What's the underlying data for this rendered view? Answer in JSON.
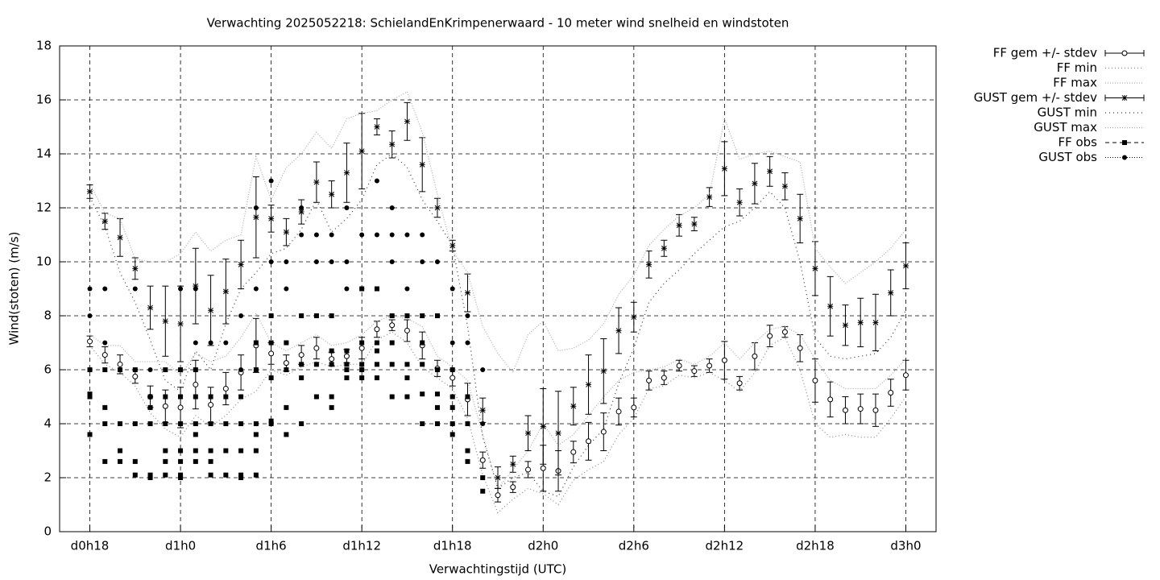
{
  "chart_data": {
    "type": "errorbar",
    "title": "Verwachting 2025052218: SchielandEnKrimpenerwaard - 10 meter wind snelheid en windstoten",
    "x_label": "Verwachtingstijd (UTC)",
    "y_label": "Wind(stoten) (m/s)",
    "xlim": [
      -2,
      56
    ],
    "xticks": [
      {
        "value": 0,
        "label": "d0h18"
      },
      {
        "value": 6,
        "label": "d1h0"
      },
      {
        "value": 12,
        "label": "d1h6"
      },
      {
        "value": 18,
        "label": "d1h12"
      },
      {
        "value": 24,
        "label": "d1h18"
      },
      {
        "value": 30,
        "label": "d2h0"
      },
      {
        "value": 36,
        "label": "d2h6"
      },
      {
        "value": 42,
        "label": "d2h12"
      },
      {
        "value": 48,
        "label": "d2h18"
      },
      {
        "value": 54,
        "label": "d3h0"
      }
    ],
    "ylim": [
      0,
      18
    ],
    "yticks": [
      0,
      2,
      4,
      6,
      8,
      10,
      12,
      14,
      16,
      18
    ],
    "grid": true,
    "legend": "outside-top-right",
    "x": [
      0,
      1,
      2,
      3,
      4,
      5,
      6,
      7,
      8,
      9,
      10,
      11,
      12,
      13,
      14,
      15,
      16,
      17,
      18,
      19,
      20,
      21,
      22,
      23,
      24,
      25,
      26,
      27,
      28,
      29,
      30,
      31,
      32,
      33,
      34,
      35,
      36,
      37,
      38,
      39,
      40,
      41,
      42,
      43,
      44,
      45,
      46,
      47,
      48,
      49,
      50,
      51,
      52,
      53,
      54
    ],
    "series": [
      {
        "name": "FF gem +/- stdev",
        "style": "errorbar",
        "marker": "open-circle",
        "color": "#000000",
        "values": [
          7.05,
          6.55,
          6.2,
          5.75,
          5.0,
          4.65,
          4.6,
          5.45,
          4.7,
          5.3,
          5.9,
          6.9,
          6.6,
          6.25,
          6.55,
          6.8,
          6.4,
          6.5,
          6.8,
          7.5,
          7.65,
          7.45,
          6.9,
          6.05,
          5.7,
          4.9,
          2.65,
          1.35,
          1.65,
          2.3,
          2.35,
          2.25,
          2.95,
          3.35,
          3.7,
          4.45,
          4.6,
          5.6,
          5.7,
          6.15,
          5.95,
          6.15,
          6.35,
          5.5,
          6.5,
          7.25,
          7.4,
          6.8,
          5.6,
          4.9,
          4.5,
          4.55,
          4.5,
          5.15,
          5.8
        ],
        "errors": [
          0.2,
          0.3,
          0.35,
          0.25,
          0.4,
          0.6,
          0.75,
          0.9,
          0.65,
          0.6,
          0.65,
          1.0,
          0.4,
          0.3,
          0.35,
          0.4,
          0.25,
          0.25,
          0.4,
          0.3,
          0.2,
          0.4,
          0.5,
          0.3,
          0.3,
          0.6,
          0.3,
          0.25,
          0.2,
          0.3,
          0.85,
          0.75,
          0.4,
          0.7,
          0.7,
          0.5,
          0.35,
          0.35,
          0.25,
          0.2,
          0.2,
          0.25,
          0.7,
          0.25,
          0.5,
          0.4,
          0.2,
          0.5,
          0.8,
          0.65,
          0.5,
          0.55,
          0.6,
          0.5,
          0.55
        ]
      },
      {
        "name": "FF min",
        "style": "line",
        "dash": "1 3",
        "color": "#888888",
        "values": [
          6.9,
          6.2,
          5.9,
          5.4,
          4.4,
          3.8,
          3.5,
          4.3,
          3.9,
          4.3,
          4.9,
          5.2,
          6.0,
          5.8,
          6.1,
          6.3,
          6.1,
          6.2,
          6.2,
          7.1,
          7.4,
          7.0,
          6.1,
          5.7,
          5.3,
          4.2,
          2.1,
          0.7,
          1.2,
          1.6,
          1.4,
          1.0,
          1.9,
          2.3,
          2.6,
          3.6,
          4.2,
          5.3,
          5.4,
          5.8,
          5.7,
          5.9,
          5.6,
          5.2,
          5.9,
          6.9,
          7.2,
          6.0,
          4.0,
          3.5,
          3.6,
          3.5,
          3.5,
          4.2,
          5.0
        ]
      },
      {
        "name": "FF max",
        "style": "line",
        "dash": "1 2",
        "color": "#aaaaaa",
        "values": [
          7.3,
          6.9,
          6.9,
          6.3,
          6.3,
          6.3,
          5.8,
          6.6,
          6.3,
          6.5,
          7.2,
          8.1,
          7.0,
          6.7,
          7.0,
          7.3,
          6.9,
          7.0,
          7.3,
          7.8,
          8.0,
          7.9,
          7.6,
          6.5,
          6.1,
          5.6,
          3.6,
          1.6,
          2.3,
          3.0,
          4.0,
          3.2,
          3.6,
          4.3,
          5.0,
          5.6,
          5.9,
          6.0,
          6.1,
          6.4,
          6.2,
          6.5,
          7.0,
          6.4,
          7.0,
          7.5,
          7.6,
          7.3,
          6.4,
          5.6,
          5.3,
          5.3,
          5.3,
          5.8,
          6.4
        ]
      },
      {
        "name": "GUST gem +/- stdev",
        "style": "errorbar",
        "marker": "star",
        "color": "#000000",
        "values": [
          12.6,
          11.5,
          10.9,
          9.75,
          8.3,
          7.8,
          7.7,
          9.1,
          8.2,
          8.9,
          9.9,
          11.65,
          11.6,
          11.1,
          11.85,
          12.95,
          12.5,
          13.3,
          14.1,
          15.0,
          14.35,
          15.2,
          13.6,
          12.0,
          10.6,
          8.85,
          4.5,
          2.0,
          2.5,
          3.65,
          3.9,
          3.65,
          4.65,
          5.45,
          5.95,
          7.45,
          7.95,
          9.9,
          10.5,
          11.35,
          11.4,
          12.4,
          13.45,
          12.2,
          12.9,
          13.35,
          12.8,
          11.6,
          9.75,
          8.35,
          7.65,
          7.75,
          7.75,
          8.85,
          9.85
        ],
        "errors": [
          0.25,
          0.3,
          0.7,
          0.4,
          0.8,
          1.3,
          1.4,
          1.4,
          1.3,
          1.2,
          0.9,
          1.5,
          0.5,
          0.5,
          0.45,
          0.75,
          0.5,
          1.1,
          1.4,
          0.3,
          0.5,
          0.7,
          1.0,
          0.35,
          0.2,
          0.7,
          0.45,
          0.4,
          0.3,
          0.65,
          1.4,
          1.55,
          0.7,
          1.1,
          1.2,
          0.85,
          0.55,
          0.5,
          0.3,
          0.4,
          0.25,
          0.35,
          1.0,
          0.5,
          0.75,
          0.55,
          0.5,
          0.9,
          1.0,
          1.1,
          0.75,
          0.9,
          1.05,
          0.85,
          0.85
        ]
      },
      {
        "name": "GUST min",
        "style": "line",
        "dash": "1 4",
        "color": "#333333",
        "values": [
          12.4,
          11.3,
          9.6,
          8.5,
          7.1,
          5.6,
          5.2,
          6.7,
          6.0,
          7.7,
          9.0,
          9.6,
          10.3,
          10.5,
          11.2,
          12.3,
          11.1,
          11.6,
          12.3,
          13.6,
          14.0,
          13.5,
          12.3,
          11.5,
          10.6,
          7.6,
          3.5,
          1.6,
          2.0,
          2.2,
          1.5,
          1.3,
          2.4,
          3.2,
          3.8,
          5.5,
          6.8,
          8.5,
          9.2,
          9.7,
          10.3,
          10.8,
          11.3,
          11.5,
          12.0,
          12.6,
          12.0,
          10.0,
          7.2,
          6.5,
          6.4,
          6.5,
          6.6,
          7.2,
          8.2
        ]
      },
      {
        "name": "GUST max",
        "style": "line",
        "dash": "1 2",
        "color": "#aaaaaa",
        "values": [
          12.9,
          11.8,
          11.6,
          10.1,
          10.0,
          10.0,
          10.3,
          11.1,
          10.4,
          10.8,
          11.0,
          13.9,
          12.3,
          13.5,
          14.0,
          14.8,
          14.2,
          15.3,
          15.5,
          15.6,
          16.0,
          16.3,
          14.8,
          12.5,
          10.4,
          9.6,
          7.6,
          6.6,
          5.9,
          7.3,
          7.8,
          6.7,
          6.8,
          7.1,
          7.7,
          8.8,
          9.5,
          10.6,
          11.2,
          11.7,
          12.0,
          12.5,
          15.3,
          13.8,
          14.0,
          14.1,
          13.9,
          13.7,
          10.5,
          9.8,
          9.2,
          9.6,
          10.0,
          10.5,
          11.2
        ]
      },
      {
        "name": "FF obs",
        "style": "points",
        "marker": "square",
        "dash": "5 4",
        "color": "#000000",
        "x": [
          0,
          0,
          0,
          0,
          1,
          1,
          1,
          1,
          2,
          2,
          2,
          2,
          3,
          3,
          3,
          3,
          4,
          4,
          4,
          4,
          4,
          5,
          5,
          5,
          5,
          5,
          5,
          6,
          6,
          6,
          6,
          6,
          6,
          6,
          7,
          7,
          7,
          7,
          7,
          7,
          8,
          8,
          8,
          8,
          8,
          9,
          9,
          9,
          9,
          10,
          10,
          10,
          10,
          10,
          11,
          11,
          11,
          11,
          11,
          11,
          12,
          12,
          12,
          12,
          12,
          13,
          13,
          13,
          13,
          14,
          14,
          14,
          14,
          15,
          15,
          15,
          16,
          16,
          16,
          16,
          16,
          17,
          17,
          17,
          17,
          18,
          18,
          18,
          18,
          18,
          19,
          19,
          19,
          19,
          19,
          20,
          20,
          20,
          20,
          21,
          21,
          21,
          21,
          22,
          22,
          22,
          22,
          22,
          23,
          23,
          23,
          23,
          23,
          24,
          24,
          24,
          24,
          24,
          25,
          25,
          25,
          25,
          26,
          26
        ],
        "values": [
          6,
          5.1,
          5.0,
          3.6,
          6,
          4.6,
          4.0,
          2.6,
          6,
          4,
          3,
          2.6,
          6,
          4,
          2.6,
          2.1,
          5,
          4.6,
          4,
          2.1,
          2.0,
          6,
          5,
          4,
          3,
          2.6,
          2.1,
          6,
          5,
          4,
          3,
          2.6,
          2.1,
          2.0,
          6,
          5,
          4,
          3.6,
          3,
          2.6,
          5,
          4,
          3,
          2.6,
          2.1,
          5,
          4,
          3,
          2.1,
          5,
          4,
          3,
          2.1,
          2.0,
          7,
          6,
          4,
          3.6,
          3,
          2.1,
          8,
          7,
          5.7,
          4.1,
          4,
          7,
          6,
          4.6,
          3.6,
          8,
          6.2,
          5.7,
          4,
          8,
          6.2,
          5,
          8,
          6.7,
          6.2,
          5,
          4.6,
          6.7,
          6.2,
          6,
          5.7,
          9,
          7,
          6,
          6.2,
          5.7,
          9,
          7,
          6.7,
          6.2,
          5.7,
          8,
          7,
          6.2,
          5,
          8,
          6.2,
          5.7,
          5,
          8,
          7,
          6.2,
          5.1,
          4,
          8,
          6,
          5.1,
          4.6,
          4,
          6,
          5,
          4.6,
          4,
          3.6,
          5,
          4,
          3,
          2.6,
          2,
          1.5
        ]
      },
      {
        "name": "GUST obs",
        "style": "points",
        "marker": "dot",
        "dash": "1 2",
        "color": "#000000",
        "x": [
          0,
          0,
          1,
          1,
          2,
          3,
          3,
          4,
          4,
          5,
          6,
          6,
          6,
          6,
          7,
          7,
          8,
          9,
          10,
          10,
          11,
          11,
          12,
          12,
          12,
          13,
          13,
          13,
          14,
          14,
          14,
          15,
          15,
          15,
          16,
          16,
          16,
          17,
          17,
          17,
          18,
          18,
          19,
          19,
          19,
          20,
          20,
          20,
          20,
          21,
          21,
          22,
          22,
          23,
          23,
          24,
          24,
          24,
          24,
          25,
          25,
          25,
          25,
          26,
          26
        ],
        "values": [
          9,
          8,
          9,
          7,
          6,
          9,
          6,
          6,
          4,
          6,
          9,
          6,
          5,
          3,
          9,
          7,
          7,
          7,
          8,
          6,
          12,
          9,
          13,
          10,
          7,
          10,
          9,
          7,
          12,
          11,
          8,
          11,
          10,
          8,
          11,
          10,
          8,
          12,
          10,
          9,
          11,
          9,
          13,
          11,
          9,
          12,
          11,
          10,
          8,
          11,
          9,
          11,
          10,
          10,
          8,
          9,
          7,
          5,
          4,
          8,
          7,
          5,
          4,
          6,
          4
        ]
      }
    ]
  }
}
